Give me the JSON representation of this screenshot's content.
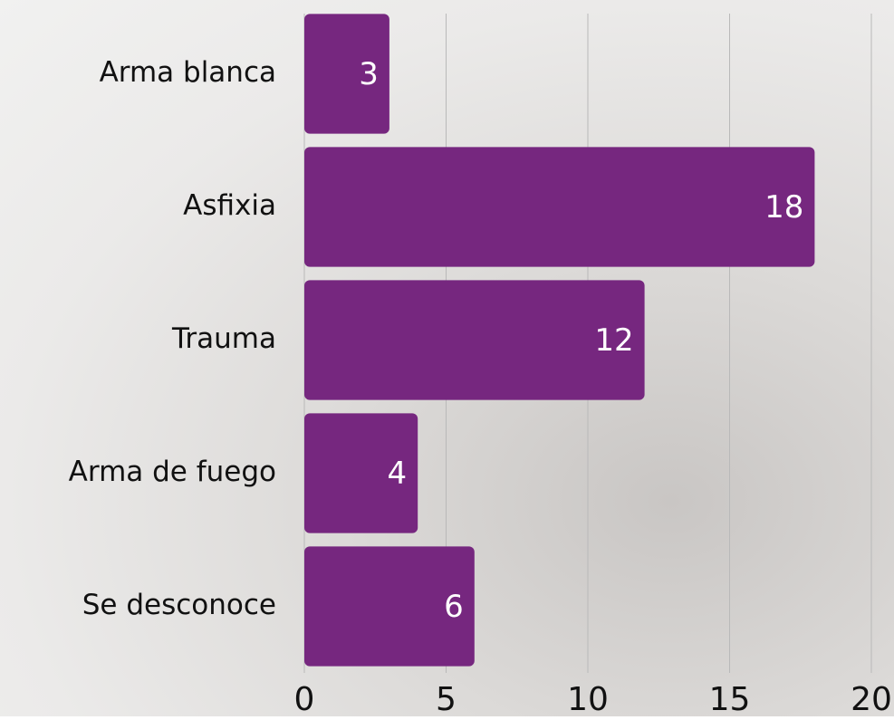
{
  "chart_data": {
    "type": "bar",
    "orientation": "horizontal",
    "categories": [
      "Arma blanca",
      "Asfixia",
      "Trauma",
      "Arma de fuego",
      "Se desconoce"
    ],
    "values": [
      3,
      18,
      12,
      4,
      6
    ],
    "color": "#76277f",
    "xlim": [
      0,
      20
    ],
    "xticks": [
      0,
      5,
      10,
      15,
      20
    ],
    "grid": true
  }
}
